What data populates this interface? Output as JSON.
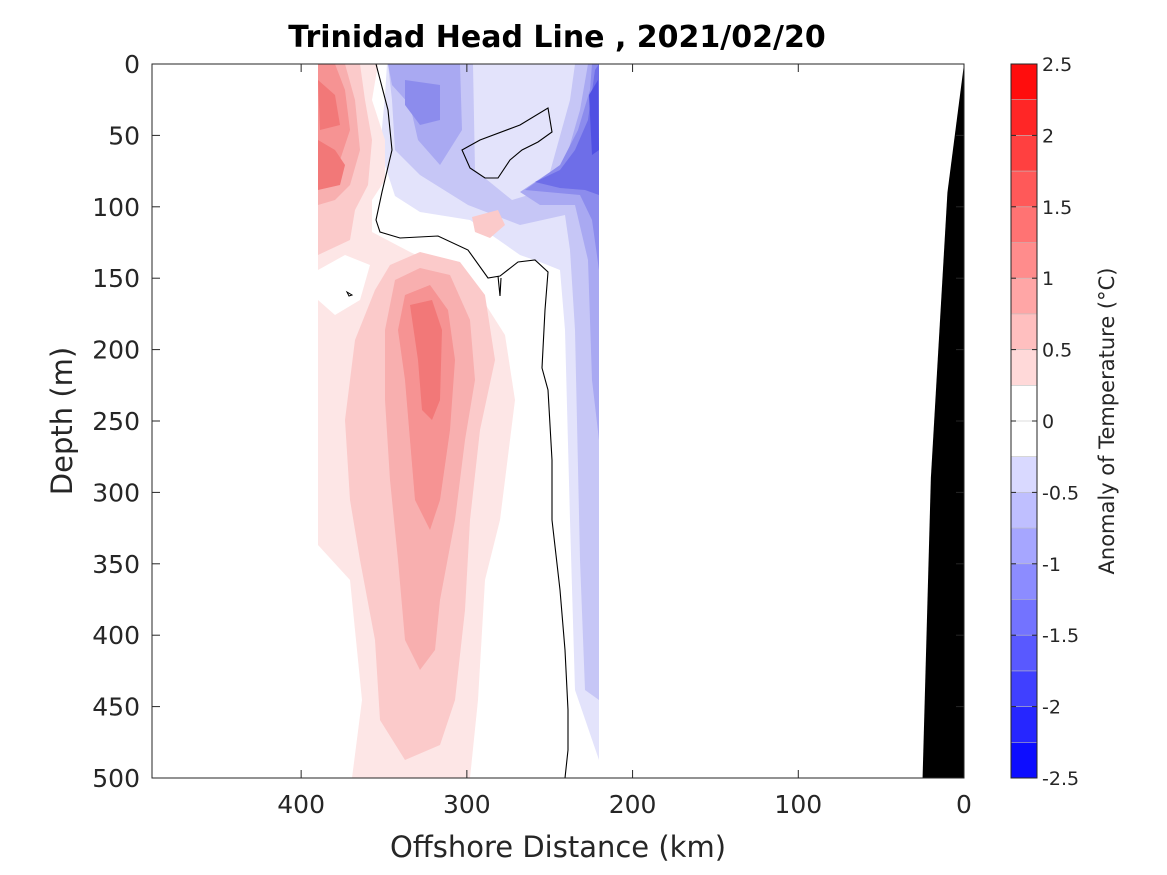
{
  "chart_data": {
    "type": "contour",
    "title": "Trinidad Head Line , 2021/02/20",
    "xlabel": "Offshore Distance (km)",
    "ylabel": "Depth (m)",
    "xlim": [
      490,
      0
    ],
    "ylim": [
      0,
      500
    ],
    "x_reversed": true,
    "y_reversed": true,
    "xticks": [
      400,
      300,
      200,
      100,
      0
    ],
    "yticks": [
      0,
      50,
      100,
      150,
      200,
      250,
      300,
      350,
      400,
      450,
      500
    ],
    "data_extent_km": [
      390,
      220
    ],
    "colorbar": {
      "label": "Anomaly of Temperature (°C)",
      "range": [
        -2.5,
        2.5
      ],
      "step": 0.25,
      "ticks": [
        2.5,
        2,
        1.5,
        1,
        0.5,
        0,
        -0.5,
        -1,
        -1.5,
        -2,
        -2.5
      ],
      "color_low": "#0000ff",
      "color_high": "#ff0000"
    },
    "zero_contour": true,
    "bathymetry": {
      "color": "#000000",
      "profile": [
        [
          0,
          0
        ],
        [
          10,
          90
        ],
        [
          20,
          290
        ],
        [
          25,
          500
        ]
      ]
    }
  }
}
